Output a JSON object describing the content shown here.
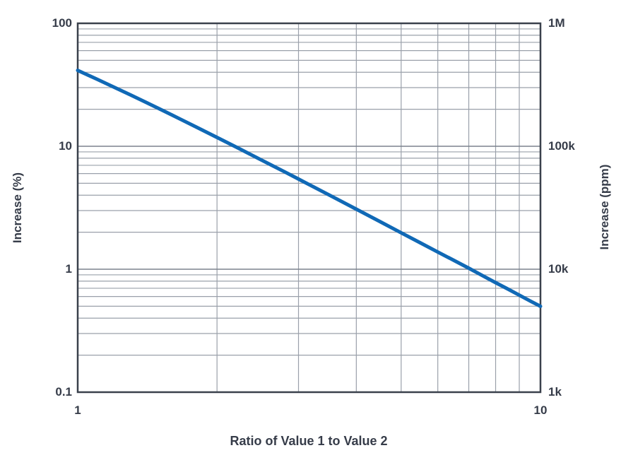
{
  "chart_data": {
    "type": "line",
    "title": "",
    "x_axis": {
      "label": "Ratio of Value 1 to Value 2",
      "scale": "log",
      "range": [
        1,
        10
      ],
      "tick_labels": [
        "1",
        "10"
      ]
    },
    "y_axis_left": {
      "label": "Increase (%)",
      "scale": "log",
      "range": [
        0.1,
        100
      ],
      "tick_labels": [
        "100",
        "10",
        "1",
        "0.1"
      ]
    },
    "y_axis_right": {
      "label": "Increase (ppm)",
      "scale": "log",
      "range": [
        1000,
        1000000
      ],
      "tick_labels": [
        "1M",
        "100k",
        "10k",
        "1k"
      ]
    },
    "grid": "log minor gridlines on, full decade minors 2-9 both axes",
    "legend": "none",
    "series": [
      {
        "name": "Increase",
        "color": "#1069b6",
        "x": [
          1,
          1.1,
          1.2,
          1.3,
          1.4,
          1.5,
          1.6,
          1.8,
          2,
          2.2,
          2.5,
          2.8,
          3,
          3.5,
          4,
          4.5,
          5,
          5.5,
          6,
          6.5,
          7,
          7.5,
          8,
          8.5,
          9,
          9.5,
          10
        ],
        "y_percent": [
          41.42,
          35.14,
          30.17,
          26.16,
          22.89,
          20.18,
          17.92,
          14.39,
          11.8,
          9.85,
          7.7,
          6.19,
          5.41,
          4.0,
          3.08,
          2.44,
          1.98,
          1.64,
          1.38,
          1.18,
          1.02,
          0.885,
          0.778,
          0.69,
          0.615,
          0.552,
          0.499
        ]
      }
    ],
    "colors": {
      "background": "#ffffff",
      "axis_text": "#363c49",
      "plot_border": "#3a414c",
      "gridline_minor": "#9aa0aa",
      "gridline_major": "#7b828d",
      "line": "#1069b6"
    }
  }
}
